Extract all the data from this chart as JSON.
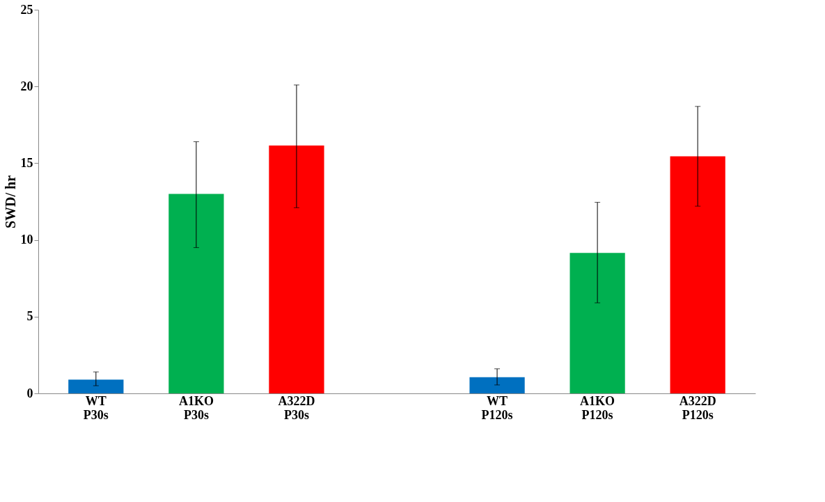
{
  "chart_data": {
    "type": "bar",
    "ylabel": "SWD/ hr",
    "categories": [
      "WT\nP30s",
      "A1KO\nP30s",
      "A322D\nP30s",
      null,
      "WT\nP120s",
      "A1KO\nP120s",
      "A322D\nP120s"
    ],
    "values": [
      0.9,
      13.0,
      16.15,
      null,
      1.05,
      9.15,
      15.45
    ],
    "colors": [
      "#0070c0",
      "#00b050",
      "#ff0000",
      null,
      "#0070c0",
      "#00b050",
      "#ff0000"
    ],
    "errors": [
      [
        0.5,
        1.4
      ],
      [
        9.5,
        16.4
      ],
      [
        12.1,
        20.1
      ],
      null,
      [
        0.55,
        1.6
      ],
      [
        5.9,
        12.45
      ],
      [
        12.2,
        18.7
      ]
    ],
    "ylim": [
      0,
      25
    ],
    "yticks": [
      0,
      5,
      10,
      15,
      20,
      25
    ],
    "grid": false
  }
}
